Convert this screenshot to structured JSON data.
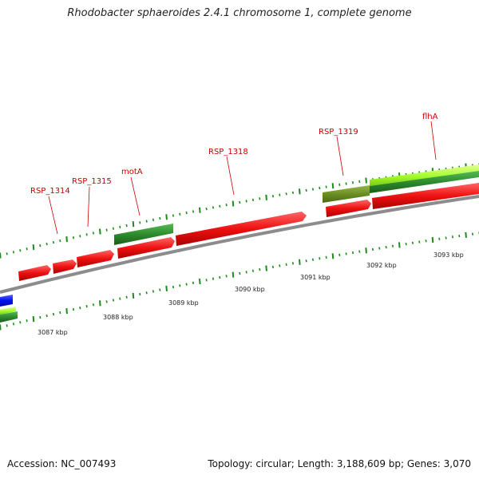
{
  "header": {
    "title": "Rhodobacter sphaeroides 2.4.1 chromosome 1, complete genome"
  },
  "footer": {
    "accession": "Accession: NC_007493",
    "summary": "Topology: circular; Length: 3,188,609 bp; Genes: 3,070"
  },
  "map": {
    "colors": {
      "backbone": "#8c8c8c",
      "gene_forward": "#ee1111",
      "feature_green": "#2e8b2e",
      "feature_olive": "#6b8e23",
      "feature_lime": "#aaff33",
      "feature_blue": "#0011ee",
      "tick": "#1e8a1e",
      "label": "#cc0000"
    },
    "gene_labels": [
      {
        "text": "RSP_1314"
      },
      {
        "text": "RSP_1315"
      },
      {
        "text": "motA"
      },
      {
        "text": "RSP_1318"
      },
      {
        "text": "RSP_1319"
      },
      {
        "text": "flhA"
      }
    ],
    "kbp_labels": [
      {
        "text": "3087 kbp"
      },
      {
        "text": "3088 kbp"
      },
      {
        "text": "3089 kbp"
      },
      {
        "text": "3090 kbp"
      },
      {
        "text": "3091 kbp"
      },
      {
        "text": "3092 kbp"
      },
      {
        "text": "3093 kbp"
      }
    ]
  }
}
